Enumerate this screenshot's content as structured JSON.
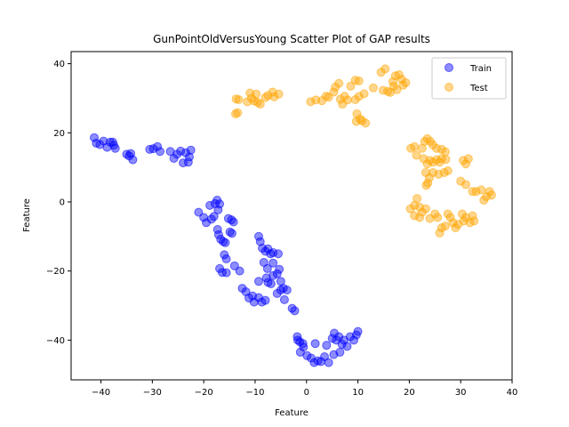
{
  "chart_data": {
    "type": "scatter",
    "title": "GunPointOldVersusYoung Scatter Plot of GAP results",
    "xlabel": "Feature",
    "ylabel": "Feature",
    "xlim": [
      -45.8,
      40
    ],
    "ylim": [
      -51.5,
      43.5
    ],
    "xticks": [
      -40,
      -30,
      -20,
      -10,
      0,
      10,
      20,
      30,
      40
    ],
    "yticks": [
      -40,
      -20,
      0,
      20,
      40
    ],
    "legend_position": "top-right",
    "grid": false,
    "series": [
      {
        "name": "Train",
        "color": "#0000ff",
        "points": [
          [
            -41.3,
            18.6
          ],
          [
            -40.9,
            17.0
          ],
          [
            -40.2,
            16.6
          ],
          [
            -39.5,
            17.6
          ],
          [
            -38.8,
            15.8
          ],
          [
            -38.2,
            17.3
          ],
          [
            -37.5,
            16.4
          ],
          [
            -37.2,
            15.5
          ],
          [
            -37.7,
            17.3
          ],
          [
            -35.0,
            13.8
          ],
          [
            -34.5,
            13.3
          ],
          [
            -33.8,
            12.2
          ],
          [
            -34.2,
            14.0
          ],
          [
            -30.5,
            15.2
          ],
          [
            -29.8,
            15.4
          ],
          [
            -29.0,
            16.0
          ],
          [
            -28.5,
            14.6
          ],
          [
            -26.5,
            14.6
          ],
          [
            -25.8,
            12.6
          ],
          [
            -25.2,
            13.8
          ],
          [
            -24.5,
            14.7
          ],
          [
            -24.0,
            11.3
          ],
          [
            -23.5,
            14.2
          ],
          [
            -23.0,
            11.5
          ],
          [
            -22.8,
            13.0
          ],
          [
            -22.5,
            15.0
          ],
          [
            -21.0,
            -3.0
          ],
          [
            -20.0,
            -4.5
          ],
          [
            -19.5,
            -6.0
          ],
          [
            -18.8,
            -1.0
          ],
          [
            -18.5,
            -5.0
          ],
          [
            -18.0,
            -4.2
          ],
          [
            -17.8,
            -0.5
          ],
          [
            -17.4,
            0.5
          ],
          [
            -17.2,
            -2.3
          ],
          [
            -16.9,
            -0.6
          ],
          [
            -17.3,
            -8.0
          ],
          [
            -17.1,
            -9.5
          ],
          [
            -16.7,
            -10.8
          ],
          [
            -16.2,
            -11.5
          ],
          [
            -15.8,
            -11.8
          ],
          [
            -14.9,
            -8.7
          ],
          [
            -14.5,
            -9.1
          ],
          [
            -15.2,
            -4.8
          ],
          [
            -14.6,
            -5.2
          ],
          [
            -14.2,
            -5.8
          ],
          [
            -16.0,
            -15.3
          ],
          [
            -15.6,
            -16.5
          ],
          [
            -16.9,
            -19.3
          ],
          [
            -16.4,
            -20.4
          ],
          [
            -15.6,
            -20.5
          ],
          [
            -14.0,
            -18.5
          ],
          [
            -13.0,
            -20.0
          ],
          [
            -12.5,
            -25.0
          ],
          [
            -11.8,
            -26.0
          ],
          [
            -11.2,
            -27.8
          ],
          [
            -10.5,
            -27.2
          ],
          [
            -10.2,
            -29.0
          ],
          [
            -9.3,
            -27.7
          ],
          [
            -8.7,
            -29.0
          ],
          [
            -8.0,
            -28.5
          ],
          [
            -9.3,
            -23.0
          ],
          [
            -9.3,
            -10.0
          ],
          [
            -9.0,
            -11.5
          ],
          [
            -8.6,
            -13.4
          ],
          [
            -8.0,
            -14.3
          ],
          [
            -7.5,
            -13.6
          ],
          [
            -7.0,
            -15.0
          ],
          [
            -6.5,
            -14.7
          ],
          [
            -5.5,
            -15.0
          ],
          [
            -8.3,
            -17.5
          ],
          [
            -7.6,
            -19.3
          ],
          [
            -6.5,
            -17.7
          ],
          [
            -5.7,
            -20.8
          ],
          [
            -5.3,
            -19.5
          ],
          [
            -5.0,
            -23.0
          ],
          [
            -7.8,
            -22.0
          ],
          [
            -7.5,
            -23.3
          ],
          [
            -6.9,
            -23.7
          ],
          [
            -6.5,
            -21.3
          ],
          [
            -5.7,
            -26.5
          ],
          [
            -5.0,
            -25.5
          ],
          [
            -4.3,
            -28.3
          ],
          [
            -4.5,
            -25.0
          ],
          [
            -3.8,
            -25.5
          ],
          [
            -2.8,
            -30.8
          ],
          [
            -2.3,
            -31.5
          ],
          [
            -1.8,
            -39.0
          ],
          [
            -1.7,
            -40.0
          ],
          [
            -1.3,
            -40.5
          ],
          [
            -0.6,
            -42.0
          ],
          [
            -1.2,
            -43.5
          ],
          [
            0.1,
            -44.5
          ],
          [
            0.9,
            -45.2
          ],
          [
            1.5,
            -46.5
          ],
          [
            2.2,
            -46.0
          ],
          [
            2.8,
            -46.2
          ],
          [
            3.5,
            -44.8
          ],
          [
            4.3,
            -46.5
          ],
          [
            3.9,
            -41.5
          ],
          [
            5.0,
            -39.5
          ],
          [
            5.4,
            -38.0
          ],
          [
            5.8,
            -40.0
          ],
          [
            6.3,
            -39.0
          ],
          [
            6.9,
            -41.2
          ],
          [
            7.3,
            -40.0
          ],
          [
            7.9,
            -41.8
          ],
          [
            8.5,
            -39.0
          ],
          [
            9.2,
            -40.0
          ],
          [
            9.7,
            -38.5
          ],
          [
            10.0,
            -37.5
          ],
          [
            6.5,
            -43.5
          ],
          [
            5.3,
            -44.2
          ],
          [
            1.7,
            -41.0
          ],
          [
            -0.7,
            -41.0
          ]
        ]
      },
      {
        "name": "Test",
        "color": "#ffa500",
        "points": [
          [
            -13.7,
            29.8
          ],
          [
            -13.2,
            29.6
          ],
          [
            -13.8,
            25.5
          ],
          [
            -13.4,
            25.8
          ],
          [
            -11.5,
            29.0
          ],
          [
            -11.0,
            31.5
          ],
          [
            -10.7,
            30.0
          ],
          [
            -10.2,
            29.2
          ],
          [
            -9.8,
            31.2
          ],
          [
            -9.5,
            28.8
          ],
          [
            -9.0,
            28.3
          ],
          [
            -8.0,
            30.2
          ],
          [
            -7.5,
            30.8
          ],
          [
            -6.6,
            31.8
          ],
          [
            -6.3,
            30.4
          ],
          [
            -5.4,
            31.2
          ],
          [
            0.8,
            29.0
          ],
          [
            1.8,
            29.5
          ],
          [
            3.0,
            29.3
          ],
          [
            3.8,
            30.6
          ],
          [
            4.3,
            30.3
          ],
          [
            5.3,
            31.8
          ],
          [
            5.6,
            33.2
          ],
          [
            6.3,
            34.3
          ],
          [
            6.6,
            29.7
          ],
          [
            7.0,
            28.3
          ],
          [
            7.4,
            30.6
          ],
          [
            8.0,
            29.5
          ],
          [
            8.6,
            33.5
          ],
          [
            9.5,
            35.2
          ],
          [
            10.2,
            35.0
          ],
          [
            9.5,
            29.6
          ],
          [
            10.2,
            30.5
          ],
          [
            11.2,
            31.3
          ],
          [
            9.8,
            25.5
          ],
          [
            10.4,
            24.0
          ],
          [
            10.8,
            23.5
          ],
          [
            11.5,
            22.8
          ],
          [
            9.7,
            23.3
          ],
          [
            13.0,
            33.0
          ],
          [
            14.5,
            37.5
          ],
          [
            15.3,
            38.5
          ],
          [
            14.9,
            32.3
          ],
          [
            15.8,
            32.0
          ],
          [
            16.3,
            31.7
          ],
          [
            16.8,
            34.8
          ],
          [
            17.3,
            36.5
          ],
          [
            18.0,
            36.8
          ],
          [
            18.5,
            35.5
          ],
          [
            18.8,
            33.8
          ],
          [
            19.3,
            34.5
          ],
          [
            17.6,
            32.5
          ],
          [
            17.0,
            33.5
          ],
          [
            20.3,
            15.5
          ],
          [
            21.0,
            16.0
          ],
          [
            21.4,
            13.5
          ],
          [
            22.5,
            15.5
          ],
          [
            23.0,
            17.5
          ],
          [
            23.5,
            18.3
          ],
          [
            24.1,
            17.5
          ],
          [
            24.6,
            16.5
          ],
          [
            25.3,
            15.5
          ],
          [
            26.3,
            15.2
          ],
          [
            27.0,
            14.5
          ],
          [
            22.8,
            12.5
          ],
          [
            23.5,
            11.0
          ],
          [
            24.0,
            12.0
          ],
          [
            24.6,
            11.5
          ],
          [
            25.3,
            12.2
          ],
          [
            25.9,
            11.5
          ],
          [
            26.3,
            12.5
          ],
          [
            27.1,
            12.3
          ],
          [
            23.2,
            8.5
          ],
          [
            23.9,
            7.0
          ],
          [
            24.6,
            8.5
          ],
          [
            25.7,
            8.0
          ],
          [
            26.8,
            8.5
          ],
          [
            27.5,
            9.0
          ],
          [
            23.6,
            5.5
          ],
          [
            23.3,
            4.8
          ],
          [
            21.0,
            -1.0
          ],
          [
            21.5,
            1.0
          ],
          [
            22.0,
            -1.5
          ],
          [
            22.5,
            -3.0
          ],
          [
            23.2,
            -2.0
          ],
          [
            20.2,
            -2.0
          ],
          [
            21.0,
            -4.0
          ],
          [
            22.0,
            -4.5
          ],
          [
            24.0,
            -4.8
          ],
          [
            25.0,
            -3.5
          ],
          [
            25.5,
            -4.5
          ],
          [
            25.9,
            -9.0
          ],
          [
            26.3,
            -7.5
          ],
          [
            27.0,
            -7.0
          ],
          [
            27.5,
            -3.5
          ],
          [
            28.0,
            -4.5
          ],
          [
            28.5,
            -6.0
          ],
          [
            29.0,
            -7.5
          ],
          [
            29.5,
            -6.5
          ],
          [
            30.3,
            -3.5
          ],
          [
            30.6,
            -5.5
          ],
          [
            31.0,
            -4.5
          ],
          [
            31.8,
            -6.0
          ],
          [
            32.3,
            -4.0
          ],
          [
            32.6,
            -5.5
          ],
          [
            30.5,
            12.0
          ],
          [
            31.0,
            11.0
          ],
          [
            31.5,
            12.5
          ],
          [
            30.0,
            6.0
          ],
          [
            31.0,
            5.0
          ],
          [
            32.3,
            3.0
          ],
          [
            33.0,
            3.0
          ],
          [
            34.0,
            3.5
          ],
          [
            34.5,
            0.5
          ],
          [
            35.0,
            1.5
          ],
          [
            35.6,
            3.0
          ],
          [
            36.0,
            2.0
          ]
        ]
      }
    ]
  }
}
